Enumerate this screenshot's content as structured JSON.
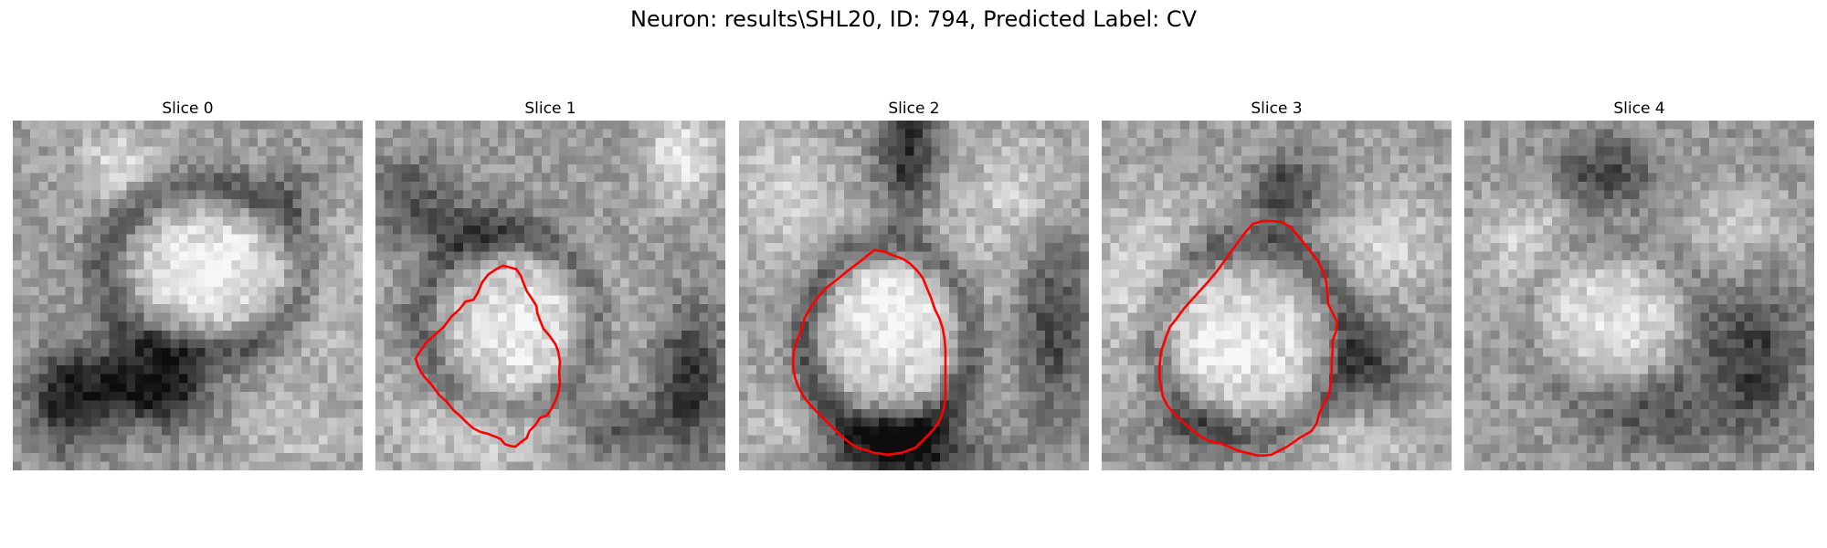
{
  "figure": {
    "title": "Neuron: results\\SHL20, ID: 794, Predicted Label: CV"
  },
  "panels": [
    {
      "title": "Slice 0",
      "contour": []
    },
    {
      "title": "Slice 1",
      "contour": [
        [
          4.6,
          27.2
        ],
        [
          5.1,
          26.4
        ],
        [
          5.8,
          25.4
        ],
        [
          6.8,
          24.5
        ],
        [
          7.8,
          23.6
        ],
        [
          8.7,
          22.4
        ],
        [
          9.6,
          21.6
        ],
        [
          10.3,
          20.7
        ],
        [
          11.2,
          20.5
        ],
        [
          11.7,
          19.7
        ],
        [
          12.2,
          18.5
        ],
        [
          12.9,
          17.6
        ],
        [
          13.8,
          17.0
        ],
        [
          14.6,
          16.6
        ],
        [
          15.4,
          16.8
        ],
        [
          16.1,
          17.0
        ],
        [
          16.6,
          17.7
        ],
        [
          16.9,
          18.5
        ],
        [
          17.3,
          19.5
        ],
        [
          17.9,
          20.4
        ],
        [
          18.4,
          21.2
        ],
        [
          18.5,
          22.0
        ],
        [
          18.8,
          22.8
        ],
        [
          19.2,
          23.8
        ],
        [
          19.9,
          24.6
        ],
        [
          20.6,
          25.6
        ],
        [
          20.9,
          26.4
        ],
        [
          21.1,
          27.6
        ],
        [
          21.0,
          28.8
        ],
        [
          21.1,
          30.0
        ],
        [
          20.9,
          31.2
        ],
        [
          20.5,
          32.2
        ],
        [
          20.1,
          33.0
        ],
        [
          19.6,
          33.7
        ],
        [
          18.8,
          34.0
        ],
        [
          18.3,
          34.8
        ],
        [
          17.6,
          35.5
        ],
        [
          17.3,
          36.3
        ],
        [
          16.6,
          36.8
        ],
        [
          16.0,
          37.3
        ],
        [
          15.4,
          37.2
        ],
        [
          14.8,
          37.0
        ],
        [
          14.3,
          36.4
        ],
        [
          13.6,
          36.1
        ],
        [
          12.8,
          35.8
        ],
        [
          12.0,
          35.6
        ],
        [
          11.2,
          35.2
        ],
        [
          10.4,
          34.5
        ],
        [
          9.7,
          33.8
        ],
        [
          8.9,
          33.1
        ],
        [
          8.1,
          32.1
        ],
        [
          7.3,
          31.4
        ],
        [
          6.5,
          30.3
        ],
        [
          5.5,
          29.2
        ],
        [
          4.9,
          28.2
        ]
      ]
    },
    {
      "title": "Slice 2",
      "contour": [
        [
          6.2,
          27.2
        ],
        [
          6.3,
          26.2
        ],
        [
          6.6,
          25.2
        ],
        [
          7.0,
          24.3
        ],
        [
          7.3,
          23.4
        ],
        [
          7.5,
          22.6
        ],
        [
          8.0,
          21.7
        ],
        [
          8.6,
          20.8
        ],
        [
          9.2,
          20.0
        ],
        [
          9.9,
          19.2
        ],
        [
          10.8,
          18.5
        ],
        [
          11.7,
          17.8
        ],
        [
          12.4,
          17.2
        ],
        [
          13.2,
          16.6
        ],
        [
          14.0,
          16.0
        ],
        [
          14.7,
          15.4
        ],
        [
          15.5,
          14.8
        ],
        [
          16.6,
          15.0
        ],
        [
          17.6,
          15.4
        ],
        [
          18.7,
          15.8
        ],
        [
          19.5,
          16.3
        ],
        [
          20.4,
          17.2
        ],
        [
          21.0,
          18.0
        ],
        [
          21.5,
          19.2
        ],
        [
          22.0,
          20.4
        ],
        [
          22.4,
          21.6
        ],
        [
          22.9,
          22.6
        ],
        [
          23.3,
          23.8
        ],
        [
          23.5,
          25.0
        ],
        [
          23.6,
          26.2
        ],
        [
          23.6,
          27.4
        ],
        [
          23.6,
          28.8
        ],
        [
          23.6,
          30.2
        ],
        [
          23.6,
          31.6
        ],
        [
          23.4,
          33.0
        ],
        [
          23.0,
          34.2
        ],
        [
          22.4,
          35.1
        ],
        [
          21.7,
          35.9
        ],
        [
          21.0,
          36.6
        ],
        [
          20.2,
          37.4
        ],
        [
          19.4,
          37.7
        ],
        [
          18.6,
          38.0
        ],
        [
          17.8,
          38.1
        ],
        [
          17.0,
          38.2
        ],
        [
          16.2,
          38.1
        ],
        [
          15.4,
          38.0
        ],
        [
          14.6,
          37.7
        ],
        [
          13.8,
          37.5
        ],
        [
          13.0,
          37.1
        ],
        [
          12.2,
          36.5
        ],
        [
          11.4,
          35.8
        ],
        [
          10.6,
          35.0
        ],
        [
          9.8,
          34.2
        ],
        [
          9.0,
          33.4
        ],
        [
          8.2,
          32.6
        ],
        [
          7.4,
          31.6
        ],
        [
          6.8,
          30.5
        ],
        [
          6.4,
          29.4
        ],
        [
          6.2,
          28.3
        ]
      ]
    },
    {
      "title": "Slice 3",
      "contour": [
        [
          6.8,
          26.4
        ],
        [
          7.3,
          24.9
        ],
        [
          7.8,
          23.6
        ],
        [
          8.6,
          22.6
        ],
        [
          9.4,
          21.5
        ],
        [
          10.3,
          20.5
        ],
        [
          11.2,
          19.5
        ],
        [
          12.2,
          18.4
        ],
        [
          13.2,
          17.2
        ],
        [
          14.0,
          16.1
        ],
        [
          14.8,
          15.0
        ],
        [
          15.6,
          13.9
        ],
        [
          16.4,
          12.8
        ],
        [
          17.3,
          11.8
        ],
        [
          18.4,
          11.5
        ],
        [
          19.5,
          11.5
        ],
        [
          20.6,
          11.6
        ],
        [
          21.5,
          12.1
        ],
        [
          22.3,
          13.0
        ],
        [
          23.1,
          14.0
        ],
        [
          23.9,
          15.0
        ],
        [
          24.7,
          16.0
        ],
        [
          25.3,
          17.2
        ],
        [
          25.7,
          18.5
        ],
        [
          25.8,
          19.8
        ],
        [
          25.9,
          21.0
        ],
        [
          26.4,
          22.0
        ],
        [
          26.9,
          23.0
        ],
        [
          26.8,
          24.1
        ],
        [
          26.4,
          25.2
        ],
        [
          26.4,
          26.4
        ],
        [
          26.3,
          27.6
        ],
        [
          26.3,
          28.8
        ],
        [
          26.2,
          30.0
        ],
        [
          26.0,
          31.3
        ],
        [
          25.4,
          32.4
        ],
        [
          24.9,
          33.4
        ],
        [
          24.6,
          34.6
        ],
        [
          24.0,
          35.5
        ],
        [
          23.3,
          35.9
        ],
        [
          22.6,
          36.3
        ],
        [
          21.8,
          36.9
        ],
        [
          21.0,
          37.4
        ],
        [
          20.2,
          37.8
        ],
        [
          19.4,
          38.2
        ],
        [
          18.6,
          38.3
        ],
        [
          17.8,
          38.3
        ],
        [
          17.0,
          38.1
        ],
        [
          16.2,
          37.9
        ],
        [
          15.4,
          37.7
        ],
        [
          14.6,
          37.3
        ],
        [
          13.8,
          37.0
        ],
        [
          13.0,
          36.8
        ],
        [
          12.2,
          36.6
        ],
        [
          11.4,
          36.2
        ],
        [
          10.6,
          35.6
        ],
        [
          9.8,
          34.9
        ],
        [
          9.0,
          34.2
        ],
        [
          8.2,
          33.4
        ],
        [
          7.5,
          32.6
        ],
        [
          7.0,
          31.6
        ],
        [
          6.8,
          30.5
        ],
        [
          6.6,
          29.4
        ],
        [
          6.6,
          28.2
        ],
        [
          6.7,
          27.2
        ]
      ]
    },
    {
      "title": "Slice 4",
      "contour": []
    }
  ]
}
